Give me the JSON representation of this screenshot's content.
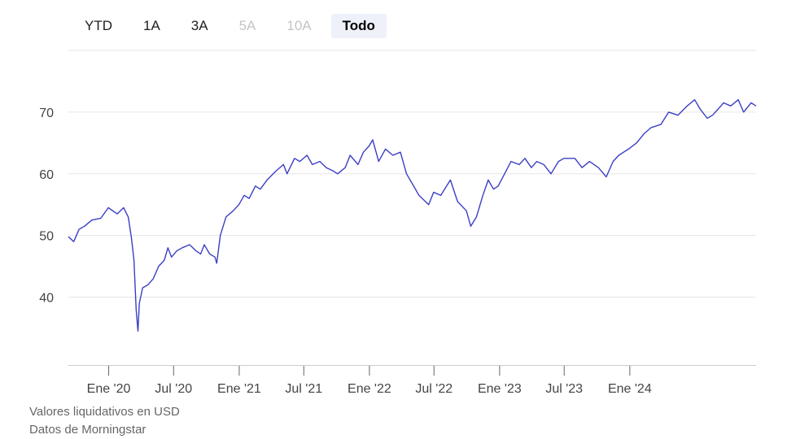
{
  "range_selector": {
    "buttons": [
      {
        "label": "YTD",
        "state": "normal"
      },
      {
        "label": "1A",
        "state": "normal"
      },
      {
        "label": "3A",
        "state": "normal"
      },
      {
        "label": "5A",
        "state": "disabled"
      },
      {
        "label": "10A",
        "state": "disabled"
      },
      {
        "label": "Todo",
        "state": "active"
      }
    ]
  },
  "footer": {
    "currency_note": "Valores liquidativos en USD",
    "source_note": "Datos de Morningstar"
  },
  "chart_data": {
    "type": "line",
    "title": "",
    "xlabel": "",
    "ylabel": "",
    "line_color": "#3b3fc4",
    "grid": true,
    "yticks": [
      40,
      50,
      60,
      70
    ],
    "xticks": [
      "Ene '20",
      "Jul '20",
      "Ene '21",
      "Jul '21",
      "Ene '22",
      "Jul '22",
      "Ene '23",
      "Jul '23",
      "Ene '24"
    ],
    "xtick_dates": [
      "2020-01-01",
      "2020-07-01",
      "2021-01-01",
      "2021-07-01",
      "2022-01-01",
      "2022-07-01",
      "2023-01-01",
      "2023-07-01",
      "2024-01-01"
    ],
    "xlim": [
      "2019-09-10",
      "2024-12-20"
    ],
    "ylim": [
      29,
      80
    ],
    "series": [
      {
        "x": [
          "2019-09-10",
          "2019-09-25",
          "2019-10-10",
          "2019-10-25",
          "2019-11-15",
          "2019-12-10",
          "2019-12-31",
          "2020-01-25",
          "2020-02-12",
          "2020-02-25",
          "2020-03-05",
          "2020-03-12",
          "2020-03-18",
          "2020-03-23",
          "2020-03-27",
          "2020-04-05",
          "2020-04-20",
          "2020-05-05",
          "2020-05-20",
          "2020-06-05",
          "2020-06-15",
          "2020-06-25",
          "2020-07-10",
          "2020-07-25",
          "2020-08-15",
          "2020-09-02",
          "2020-09-15",
          "2020-09-25",
          "2020-10-10",
          "2020-10-25",
          "2020-10-30",
          "2020-11-09",
          "2020-11-25",
          "2020-12-15",
          "2020-12-31",
          "2021-01-15",
          "2021-01-29",
          "2021-02-15",
          "2021-03-01",
          "2021-03-20",
          "2021-04-15",
          "2021-05-05",
          "2021-05-15",
          "2021-06-05",
          "2021-06-20",
          "2021-07-10",
          "2021-07-25",
          "2021-08-15",
          "2021-09-02",
          "2021-09-20",
          "2021-10-04",
          "2021-10-25",
          "2021-11-08",
          "2021-11-30",
          "2021-12-15",
          "2021-12-31",
          "2022-01-10",
          "2022-01-27",
          "2022-02-15",
          "2022-03-08",
          "2022-03-29",
          "2022-04-15",
          "2022-05-05",
          "2022-05-20",
          "2022-06-16",
          "2022-06-30",
          "2022-07-20",
          "2022-08-16",
          "2022-09-05",
          "2022-09-30",
          "2022-10-12",
          "2022-10-28",
          "2022-11-15",
          "2022-11-30",
          "2022-12-15",
          "2022-12-28",
          "2023-01-15",
          "2023-02-02",
          "2023-02-25",
          "2023-03-13",
          "2023-03-31",
          "2023-04-15",
          "2023-05-05",
          "2023-05-25",
          "2023-06-15",
          "2023-06-30",
          "2023-07-31",
          "2023-08-20",
          "2023-09-10",
          "2023-10-05",
          "2023-10-27",
          "2023-11-15",
          "2023-12-01",
          "2023-12-28",
          "2024-01-20",
          "2024-02-10",
          "2024-03-01",
          "2024-03-28",
          "2024-04-19",
          "2024-05-15",
          "2024-06-10",
          "2024-07-01",
          "2024-07-16",
          "2024-08-05",
          "2024-08-20",
          "2024-09-05",
          "2024-09-20",
          "2024-10-10",
          "2024-10-31",
          "2024-11-15",
          "2024-12-06",
          "2024-12-20"
        ],
        "values": [
          49.8,
          49.0,
          51.0,
          51.5,
          52.5,
          52.8,
          54.5,
          53.5,
          54.5,
          53.0,
          49.5,
          46.0,
          38.0,
          34.5,
          39.0,
          41.5,
          42.0,
          43.0,
          45.0,
          46.0,
          48.0,
          46.5,
          47.5,
          48.0,
          48.5,
          47.5,
          47.0,
          48.5,
          47.0,
          46.5,
          45.5,
          50.0,
          53.0,
          54.0,
          55.0,
          56.5,
          56.0,
          58.0,
          57.5,
          59.0,
          60.5,
          61.5,
          60.0,
          62.5,
          62.0,
          63.0,
          61.5,
          62.0,
          61.0,
          60.5,
          60.0,
          61.0,
          63.0,
          61.5,
          63.5,
          64.5,
          65.5,
          62.0,
          64.0,
          63.0,
          63.5,
          60.0,
          58.0,
          56.5,
          55.0,
          57.0,
          56.5,
          59.0,
          55.5,
          54.0,
          51.5,
          53.0,
          56.5,
          59.0,
          57.5,
          58.0,
          60.0,
          62.0,
          61.5,
          62.5,
          61.0,
          62.0,
          61.5,
          60.0,
          62.0,
          62.5,
          62.5,
          61.0,
          62.0,
          61.0,
          59.5,
          62.0,
          63.0,
          64.0,
          65.0,
          66.5,
          67.5,
          68.0,
          70.0,
          69.5,
          71.0,
          72.0,
          70.5,
          69.0,
          69.5,
          70.5,
          71.5,
          71.0,
          72.0,
          70.0,
          71.5,
          71.0
        ]
      }
    ]
  }
}
